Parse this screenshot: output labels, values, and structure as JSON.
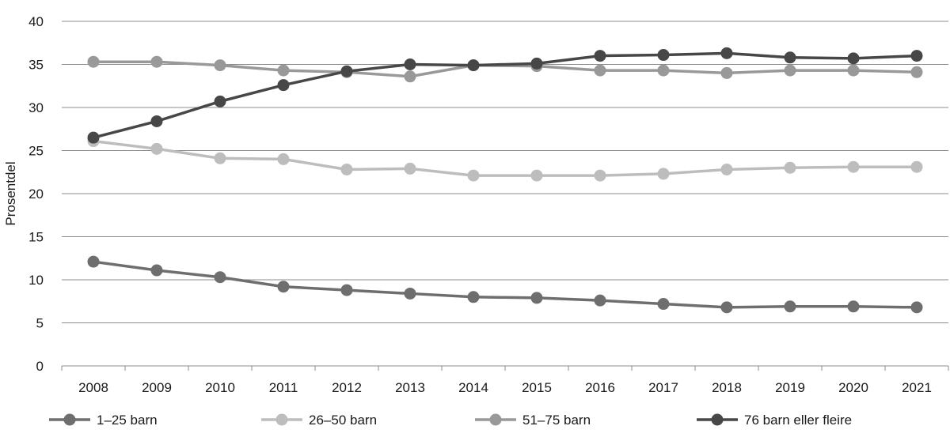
{
  "chart_data": {
    "type": "line",
    "title": "",
    "xlabel": "",
    "ylabel": "Prosentdel",
    "x": [
      "2008",
      "2009",
      "2010",
      "2011",
      "2012",
      "2013",
      "2014",
      "2015",
      "2016",
      "2017",
      "2018",
      "2019",
      "2020",
      "2021"
    ],
    "ylim": [
      0,
      40
    ],
    "yticks": [
      "0",
      "5",
      "10",
      "15",
      "20",
      "25",
      "30",
      "35",
      "40"
    ],
    "grid": true,
    "legend_position": "bottom",
    "series": [
      {
        "name": "1–25 barn",
        "color": "#6e6e6e",
        "values": [
          12.1,
          11.1,
          10.3,
          9.2,
          8.8,
          8.4,
          8.0,
          7.9,
          7.6,
          7.2,
          6.8,
          6.9,
          6.9,
          6.8
        ]
      },
      {
        "name": "26–50 barn",
        "color": "#bdbdbd",
        "values": [
          26.1,
          25.2,
          24.1,
          24.0,
          22.8,
          22.9,
          22.1,
          22.1,
          22.1,
          22.3,
          22.8,
          23.0,
          23.1,
          23.1
        ]
      },
      {
        "name": "51–75 barn",
        "color": "#999999",
        "values": [
          35.3,
          35.3,
          34.9,
          34.3,
          34.1,
          33.6,
          34.9,
          34.8,
          34.3,
          34.3,
          34.0,
          34.3,
          34.3,
          34.1
        ]
      },
      {
        "name": "76 barn eller fleire",
        "color": "#474747",
        "values": [
          26.5,
          28.4,
          30.7,
          32.6,
          34.2,
          35.0,
          34.9,
          35.1,
          36.0,
          36.1,
          36.3,
          35.8,
          35.7,
          36.0
        ]
      }
    ]
  }
}
